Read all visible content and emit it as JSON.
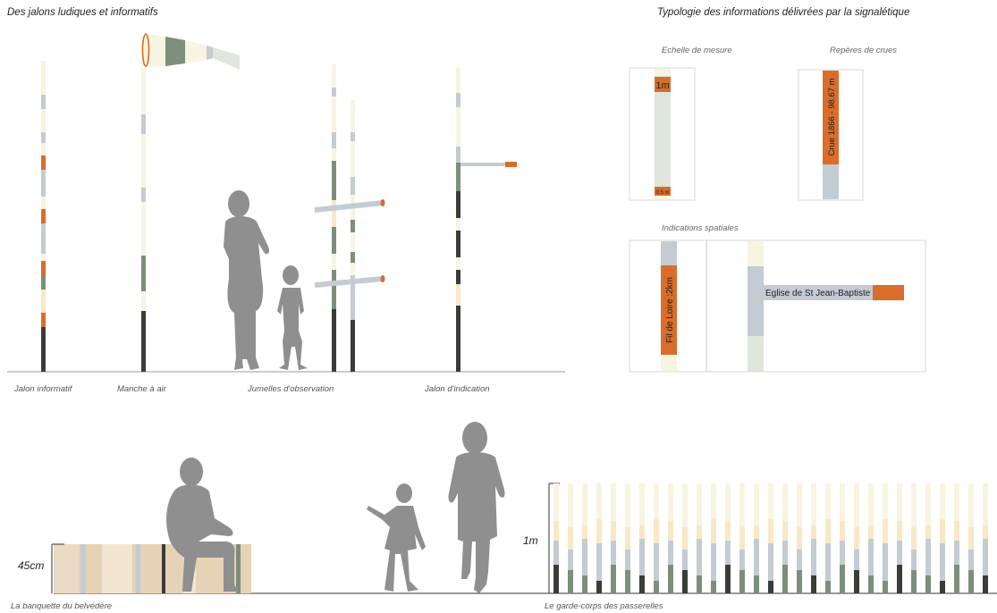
{
  "titles": {
    "left": "Des jalons ludiques et informatifs",
    "right": "Typologie des informations délivrées par la signalétique"
  },
  "captions": {
    "jalon_informatif": "Jalon informatif",
    "manche_a_air": "Manche à air",
    "jumelles": "Jumelles d'observation",
    "jalon_indication": "Jalon d'indication",
    "banquette": "La banquette du belvédère",
    "garde_corps": "Le garde-corps des passerelles"
  },
  "subtitles": {
    "echelle": "Echelle de mesure",
    "reperes": "Repères de crues",
    "indications": "Indications spatiales"
  },
  "panel_text": {
    "scale_top": "1m",
    "scale_bottom": "0.5 m",
    "flood": "Crue 1866  -  98.67 m",
    "fil_loire": "Fil de Loire :2km",
    "eglise": "Eglise de St Jean-Baptiste"
  },
  "dimensions": {
    "bench_height": "45cm",
    "rail_height": "1m"
  },
  "colors": {
    "orange": "#d86d2c",
    "dark": "#3b3b38",
    "sage": "#7b8f7b",
    "grey_blue": "#c3cbd3",
    "cream": "#f7f4e2",
    "peach": "#f9e7c6",
    "tan": "#e6d2b5",
    "silhouette": "#8f8f8f"
  }
}
